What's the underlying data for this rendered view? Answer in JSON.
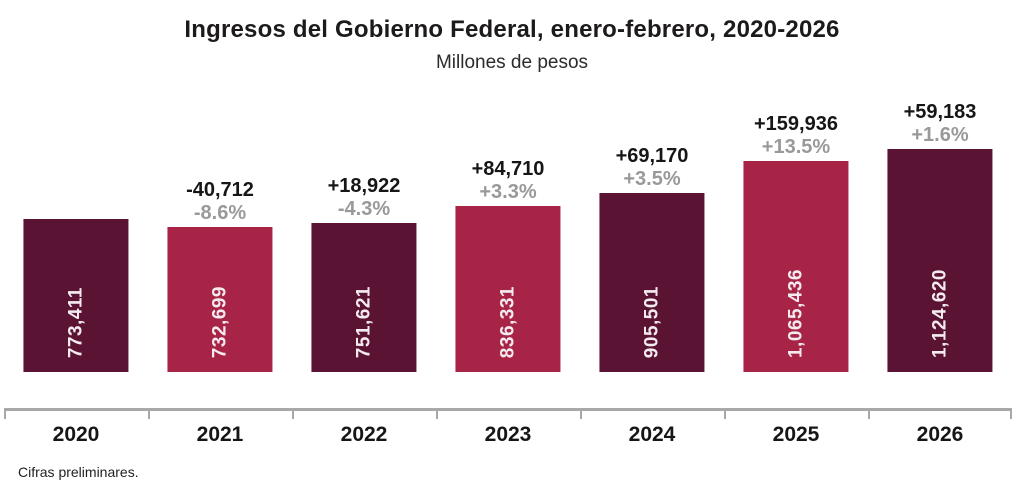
{
  "chart_data": {
    "type": "bar",
    "title": "Ingresos del Gobierno Federal, enero-febrero, 2020-2026",
    "subtitle": "Millones de pesos",
    "footnote": "Cifras preliminares.",
    "ylabel": "Millones de pesos",
    "xlabel": "",
    "grid": false,
    "legend": false,
    "categories": [
      "2020",
      "2021",
      "2022",
      "2023",
      "2024",
      "2025",
      "2026"
    ],
    "values": [
      773411,
      732699,
      751621,
      836331,
      905501,
      1065436,
      1124620
    ],
    "bars": [
      {
        "year": "2020",
        "value": 773411,
        "value_label": "773,411",
        "diff_label": "",
        "pct_label": "",
        "color": "dark"
      },
      {
        "year": "2021",
        "value": 732699,
        "value_label": "732,699",
        "diff_label": "-40,712",
        "pct_label": "-8.6%",
        "color": "light"
      },
      {
        "year": "2022",
        "value": 751621,
        "value_label": "751,621",
        "diff_label": "+18,922",
        "pct_label": "-4.3%",
        "color": "dark"
      },
      {
        "year": "2023",
        "value": 836331,
        "value_label": "836,331",
        "diff_label": "+84,710",
        "pct_label": "+3.3%",
        "color": "light"
      },
      {
        "year": "2024",
        "value": 905501,
        "value_label": "905,501",
        "diff_label": "+69,170",
        "pct_label": "+3.5%",
        "color": "dark"
      },
      {
        "year": "2025",
        "value": 1065436,
        "value_label": "1,065,436",
        "diff_label": "+159,936",
        "pct_label": "+13.5%",
        "color": "light"
      },
      {
        "year": "2026",
        "value": 1124620,
        "value_label": "1,124,620",
        "diff_label": "+59,183",
        "pct_label": "+1.6%",
        "color": "dark"
      }
    ],
    "colors": {
      "dark": "#5a1332",
      "light": "#a72447",
      "value_text": "#f4ebf0",
      "diff_text": "#161616",
      "pct_text": "#9b989a",
      "axis": "#a8a8a8",
      "year_text": "#161616",
      "title_text": "#1d1a1c",
      "subtitle_text": "#2b2b2b"
    }
  }
}
